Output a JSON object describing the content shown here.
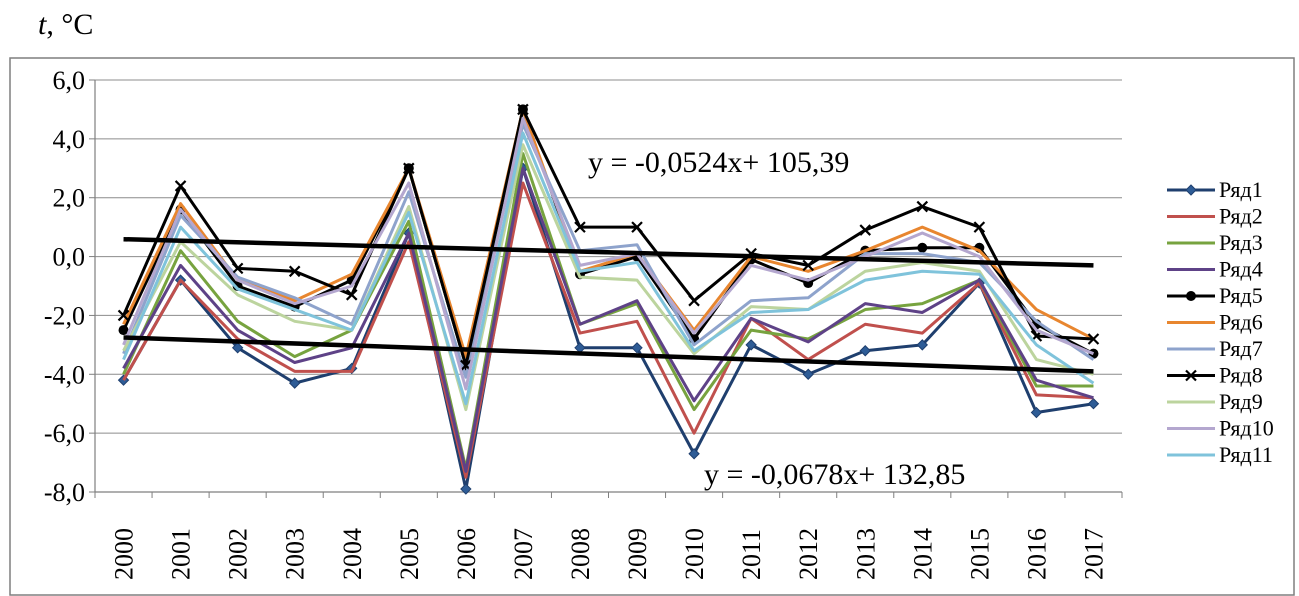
{
  "chart_data": {
    "type": "line",
    "ylabel_var": "t",
    "ylabel_unit": ", °C",
    "categories": [
      "2000",
      "2001",
      "2002",
      "2003",
      "2004",
      "2005",
      "2006",
      "2007",
      "2008",
      "2009",
      "2010",
      "2011",
      "2012",
      "2013",
      "2014",
      "2015",
      "2016",
      "2017"
    ],
    "ylim": [
      -8,
      6
    ],
    "yticks": [
      "-8,0",
      "-6,0",
      "-4,0",
      "-2,0",
      "0,0",
      "2,0",
      "4,0",
      "6,0"
    ],
    "ytick_values": [
      -8,
      -6,
      -4,
      -2,
      0,
      2,
      4,
      6
    ],
    "grid": true,
    "legend_position": "right",
    "series": [
      {
        "name": "Ряд1",
        "color": "#1f3f6e",
        "marker": "diamond",
        "values": [
          -4.2,
          -0.8,
          -3.1,
          -4.3,
          -3.8,
          0.8,
          -7.9,
          3.0,
          -3.1,
          -3.1,
          -6.7,
          -3.0,
          -4.0,
          -3.2,
          -3.0,
          -0.9,
          -5.3,
          -5.0
        ]
      },
      {
        "name": "Ряд2",
        "color": "#c0504d",
        "marker": "none",
        "values": [
          -4.2,
          -0.8,
          -2.8,
          -3.9,
          -3.9,
          0.5,
          -7.5,
          2.5,
          -2.6,
          -2.2,
          -6.0,
          -2.1,
          -3.5,
          -2.3,
          -2.6,
          -0.9,
          -4.7,
          -4.8
        ]
      },
      {
        "name": "Ряд3",
        "color": "#77a33f",
        "marker": "none",
        "values": [
          -4.0,
          0.2,
          -2.2,
          -3.4,
          -2.5,
          1.2,
          -7.2,
          3.5,
          -2.3,
          -1.6,
          -5.2,
          -2.5,
          -2.8,
          -1.8,
          -1.6,
          -0.8,
          -4.4,
          -4.4
        ]
      },
      {
        "name": "Ряд4",
        "color": "#5e4287",
        "marker": "none",
        "values": [
          -3.8,
          -0.3,
          -2.5,
          -3.6,
          -3.1,
          0.8,
          -7.3,
          3.0,
          -2.3,
          -1.5,
          -4.9,
          -2.1,
          -2.9,
          -1.6,
          -1.9,
          -0.8,
          -4.2,
          -4.8
        ]
      },
      {
        "name": "Ряд5",
        "color": "#000000",
        "marker": "circle",
        "values": [
          -2.5,
          1.6,
          -1.0,
          -1.7,
          -0.8,
          3.0,
          -3.7,
          5.0,
          -0.6,
          0.0,
          -2.8,
          -0.1,
          -0.9,
          0.2,
          0.3,
          0.3,
          -2.3,
          -3.3
        ]
      },
      {
        "name": "Ряд6",
        "color": "#e8862f",
        "marker": "none",
        "values": [
          -2.3,
          1.8,
          -0.8,
          -1.5,
          -0.6,
          3.0,
          -3.4,
          5.0,
          -0.5,
          0.1,
          -2.5,
          0.0,
          -0.5,
          0.2,
          1.0,
          0.2,
          -1.8,
          -2.8
        ]
      },
      {
        "name": "Ряд7",
        "color": "#8ea3cc",
        "marker": "none",
        "values": [
          -3.3,
          1.4,
          -0.7,
          -1.4,
          -2.3,
          2.2,
          -4.1,
          4.5,
          0.2,
          0.4,
          -3.0,
          -1.5,
          -1.4,
          0.1,
          0.1,
          -0.2,
          -2.2,
          -3.5
        ]
      },
      {
        "name": "Ряд8",
        "color": "#000000",
        "marker": "x",
        "values": [
          -2.0,
          2.4,
          -0.4,
          -0.5,
          -1.3,
          3.0,
          -3.7,
          5.0,
          1.0,
          1.0,
          -1.5,
          0.1,
          -0.3,
          0.9,
          1.7,
          1.0,
          -2.7,
          -2.8
        ]
      },
      {
        "name": "Ряд9",
        "color": "#bcd49e",
        "marker": "none",
        "values": [
          -3.2,
          0.5,
          -1.3,
          -2.2,
          -2.5,
          1.7,
          -5.2,
          3.8,
          -0.7,
          -0.8,
          -3.3,
          -1.7,
          -1.8,
          -0.5,
          -0.2,
          -0.5,
          -3.5,
          -4.0
        ]
      },
      {
        "name": "Ряд10",
        "color": "#b4a7cf",
        "marker": "none",
        "values": [
          -3.0,
          1.6,
          -0.8,
          -1.6,
          -1.0,
          2.5,
          -4.5,
          4.7,
          -0.3,
          0.1,
          -2.6,
          -0.3,
          -0.8,
          0.0,
          0.8,
          0.0,
          -2.5,
          -3.3
        ]
      },
      {
        "name": "Ряд11",
        "color": "#7fc3db",
        "marker": "none",
        "values": [
          -3.5,
          1.0,
          -1.1,
          -1.8,
          -2.5,
          1.5,
          -5.0,
          4.2,
          -0.5,
          -0.2,
          -3.2,
          -1.9,
          -1.8,
          -0.8,
          -0.5,
          -0.6,
          -3.0,
          -4.3
        ]
      }
    ],
    "trendlines": [
      {
        "label": "y = -0,0524x+ 105,39",
        "slope": -0.0524,
        "intercept": 105.39,
        "color": "#000000"
      },
      {
        "label": "y = -0,0678x+ 132,85",
        "slope": -0.0678,
        "intercept": 132.85,
        "color": "#000000"
      }
    ]
  }
}
